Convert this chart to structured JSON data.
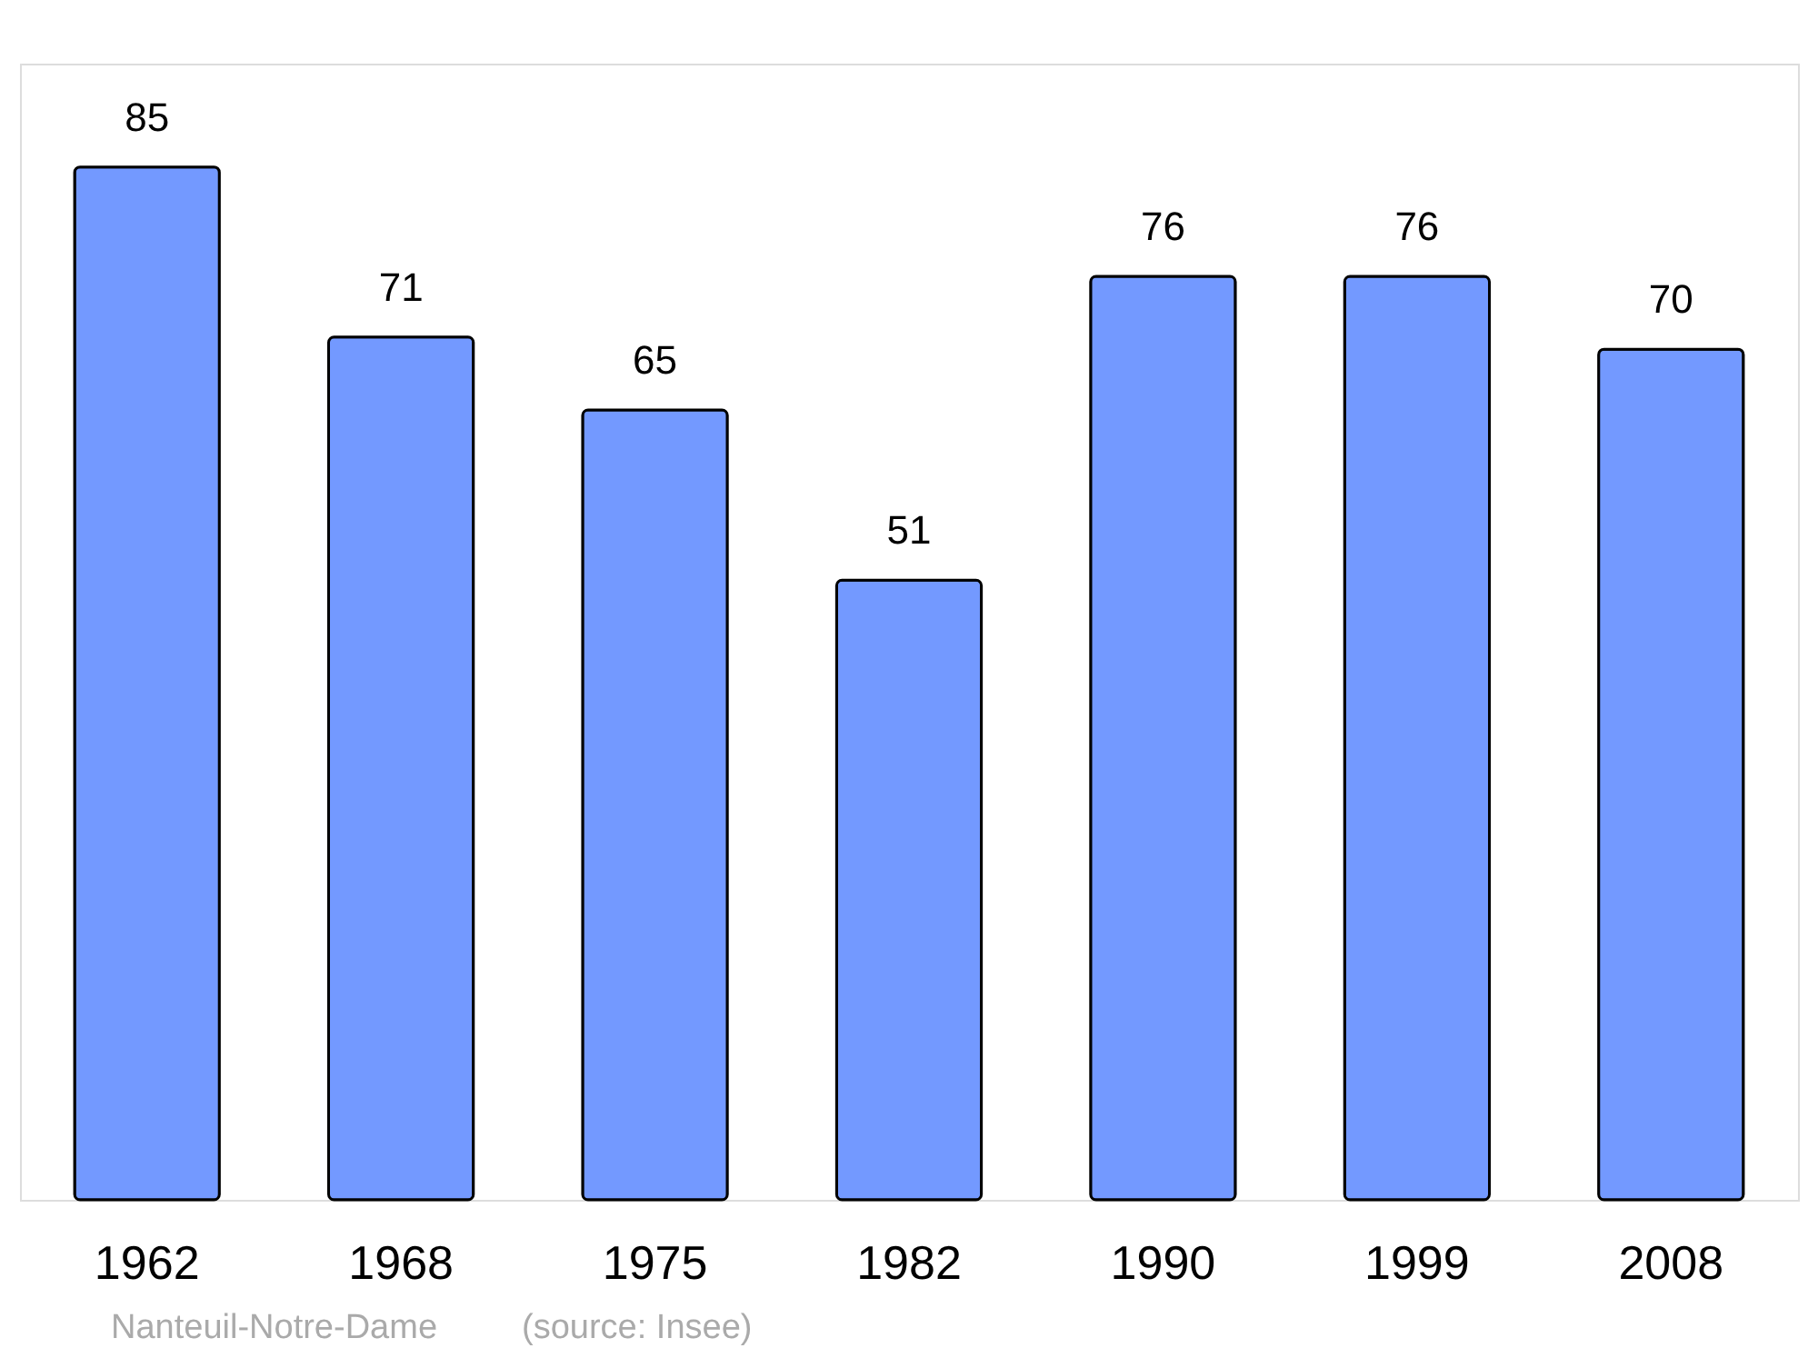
{
  "chart_data": {
    "type": "bar",
    "categories": [
      "1962",
      "1968",
      "1975",
      "1982",
      "1990",
      "1999",
      "2008"
    ],
    "values": [
      85,
      71,
      65,
      51,
      76,
      76,
      70
    ],
    "color": "#7399ff",
    "ylim": [
      0,
      93.5
    ],
    "data_labels": true,
    "annotations": [
      "Nanteuil-Notre-Dame",
      "(source: Insee)"
    ]
  }
}
